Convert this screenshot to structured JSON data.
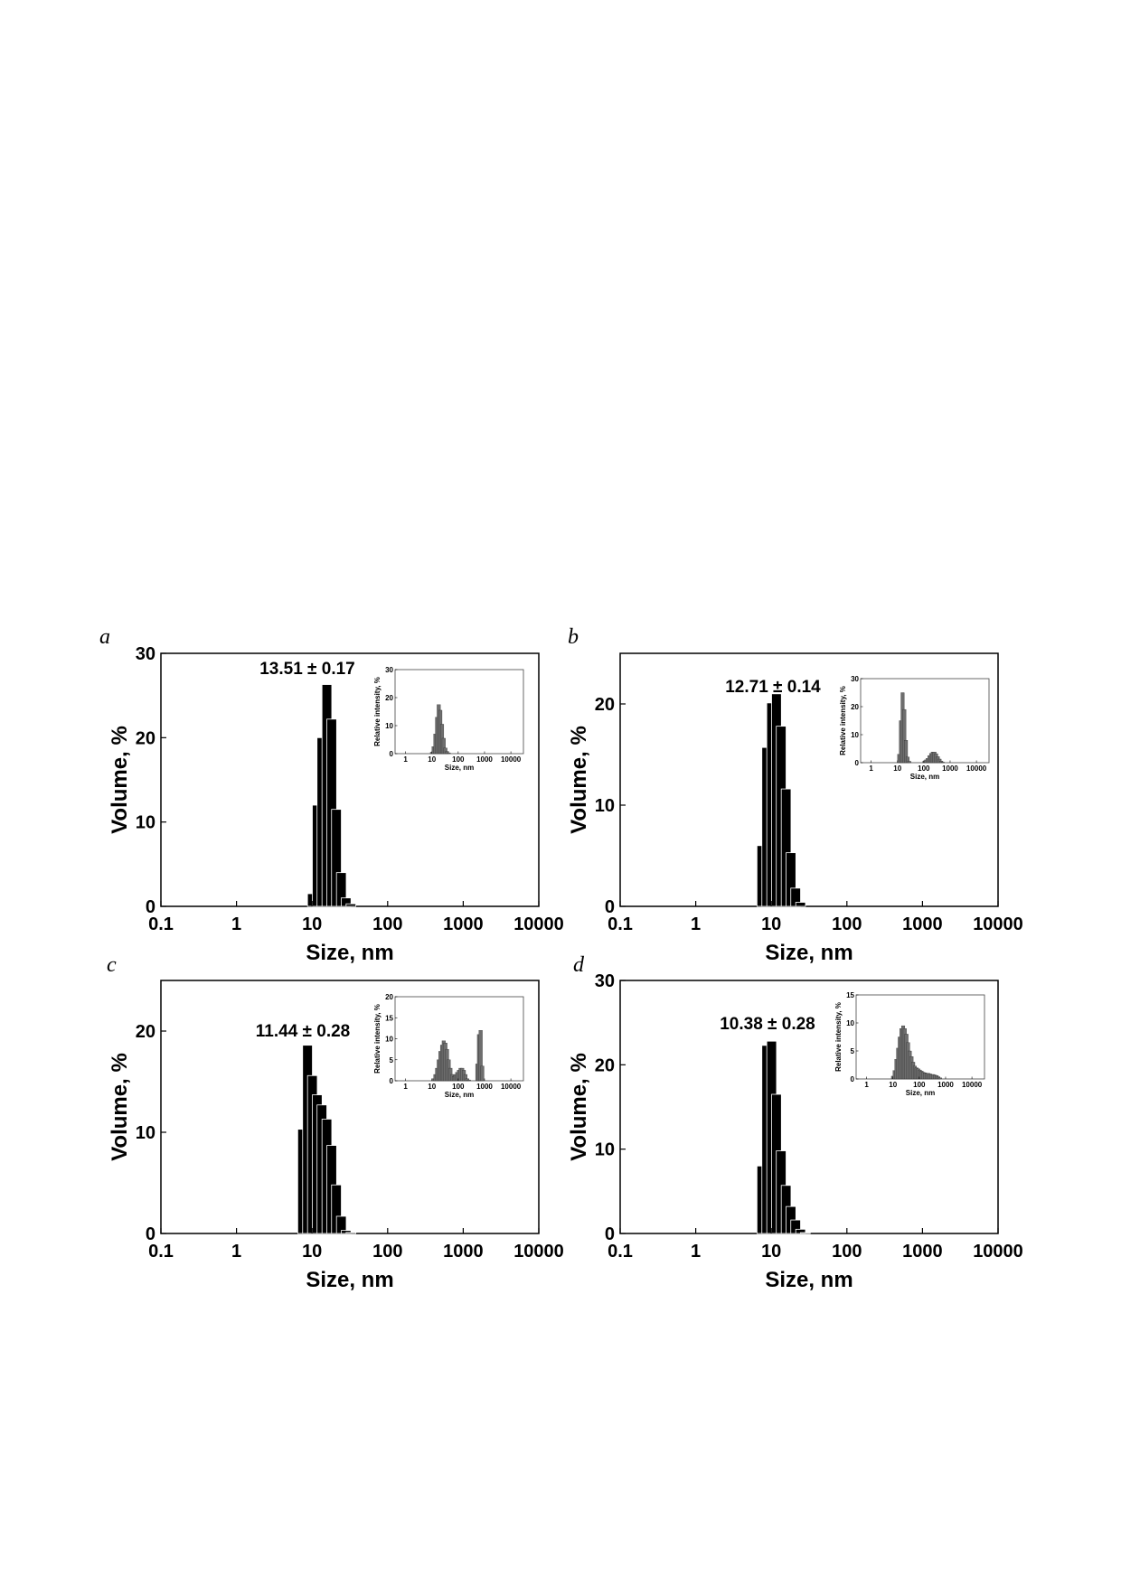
{
  "chart_data": [
    {
      "type": "bar",
      "panel": "a",
      "annotation": "13.51 ± 0.17",
      "xlabel": "Size, nm",
      "ylabel": "Volume, %",
      "xscale": "log",
      "xlim": [
        0.1,
        10000
      ],
      "xticks": [
        "0.1",
        "1",
        "10",
        "100",
        "1000",
        "10000"
      ],
      "ylim": [
        0,
        30
      ],
      "yticks": [
        "0",
        "10",
        "20",
        "30"
      ],
      "grid": false,
      "x": [
        10.1,
        11.7,
        13.5,
        15.7,
        18.2,
        21.0,
        24.4,
        28.2,
        32.7
      ],
      "values": [
        1.5,
        12.0,
        20.0,
        26.3,
        22.2,
        11.5,
        4.0,
        1.0,
        0.3
      ],
      "inset": {
        "type": "bar",
        "xlabel": "Size, nm",
        "ylabel": "Relative intensity, %",
        "xscale": "log",
        "xlim": [
          0.4,
          30000
        ],
        "xticks": [
          "1",
          "10",
          "100",
          "1000",
          "10000"
        ],
        "ylim": [
          0,
          30
        ],
        "yticks": [
          "0",
          "10",
          "20",
          "30"
        ],
        "x": [
          10.1,
          11.7,
          13.5,
          15.7,
          18.2,
          21.0,
          24.4,
          28.2,
          32.7,
          37.8,
          43.8
        ],
        "values": [
          0.5,
          2.5,
          7.0,
          13.0,
          17.5,
          15.5,
          10.5,
          5.5,
          2.0,
          0.8,
          0.3
        ]
      }
    },
    {
      "type": "bar",
      "panel": "b",
      "annotation": "12.71 ± 0.14",
      "xlabel": "Size, nm",
      "ylabel": "Volume, %",
      "xscale": "log",
      "xlim": [
        0.1,
        10000
      ],
      "xticks": [
        "0.1",
        "1",
        "10",
        "100",
        "1000",
        "10000"
      ],
      "ylim": [
        0,
        25
      ],
      "yticks": [
        "0",
        "10",
        "20"
      ],
      "grid": false,
      "x": [
        7.5,
        8.7,
        10.1,
        11.7,
        13.5,
        15.7,
        18.2,
        21.0,
        24.4
      ],
      "values": [
        6.0,
        15.7,
        20.1,
        21.0,
        17.8,
        11.6,
        5.3,
        1.8,
        0.4
      ],
      "inset": {
        "type": "bar",
        "xlabel": "Size, nm",
        "ylabel": "Relative intensity, %",
        "xscale": "log",
        "xlim": [
          0.4,
          30000
        ],
        "xticks": [
          "1",
          "10",
          "100",
          "1000",
          "10000"
        ],
        "ylim": [
          0,
          30
        ],
        "yticks": [
          "0",
          "10",
          "20",
          "30"
        ],
        "x": [
          11.7,
          13.5,
          15.7,
          18.2,
          21.0,
          24.4,
          28.2,
          105,
          122,
          141,
          164,
          190,
          220,
          255,
          295,
          342,
          396,
          459,
          531
        ],
        "values": [
          3.0,
          15.0,
          25.0,
          19.0,
          8.0,
          2.0,
          0.5,
          0.5,
          1.0,
          1.5,
          2.5,
          3.3,
          3.8,
          3.8,
          3.2,
          2.2,
          1.3,
          0.6,
          0.2
        ]
      }
    },
    {
      "type": "bar",
      "panel": "c",
      "annotation": "11.44 ± 0.28",
      "xlabel": "Size, nm",
      "ylabel": "Volume, %",
      "xscale": "log",
      "xlim": [
        0.1,
        10000
      ],
      "xticks": [
        "0.1",
        "1",
        "10",
        "100",
        "1000",
        "10000"
      ],
      "ylim": [
        0,
        25
      ],
      "yticks": [
        "0",
        "10",
        "20"
      ],
      "grid": false,
      "x": [
        7.5,
        8.7,
        10.1,
        11.7,
        13.5,
        15.7,
        18.2,
        21.0,
        24.4,
        28.2,
        32.7
      ],
      "values": [
        10.3,
        18.6,
        15.6,
        13.7,
        12.7,
        11.3,
        8.7,
        4.8,
        1.7,
        0.3,
        0.1
      ],
      "inset": {
        "type": "bar",
        "xlabel": "Size, nm",
        "ylabel": "Relative intensity, %",
        "xscale": "log",
        "xlim": [
          0.4,
          30000
        ],
        "xticks": [
          "1",
          "10",
          "100",
          "1000",
          "10000"
        ],
        "ylim": [
          0,
          20
        ],
        "yticks": [
          "0",
          "5",
          "10",
          "15",
          "20"
        ],
        "x": [
          11.7,
          13.5,
          15.7,
          18.2,
          21.0,
          24.4,
          28.2,
          32.7,
          37.8,
          43.8,
          50.7,
          58.8,
          68.1,
          78.8,
          91.3,
          105.7,
          122.4,
          141.8,
          164.2,
          190.1,
          220.2,
          255.0,
          531.2,
          615.1,
          712.4,
          825.0
        ],
        "values": [
          0.5,
          1.5,
          3.0,
          5.0,
          7.0,
          8.5,
          9.5,
          9.0,
          7.5,
          5.0,
          3.0,
          1.5,
          1.0,
          1.5,
          2.0,
          2.5,
          3.0,
          3.0,
          2.5,
          1.5,
          0.5,
          0.2,
          4.0,
          11.0,
          12.0,
          3.5
        ]
      }
    },
    {
      "type": "bar",
      "panel": "d",
      "annotation": "10.38 ± 0.28",
      "xlabel": "Size, nm",
      "ylabel": "Volume, %",
      "xscale": "log",
      "xlim": [
        0.1,
        10000
      ],
      "xticks": [
        "0.1",
        "1",
        "10",
        "100",
        "1000",
        "10000"
      ],
      "ylim": [
        0,
        30
      ],
      "yticks": [
        "0",
        "10",
        "20",
        "30"
      ],
      "grid": false,
      "x": [
        7.5,
        8.7,
        10.1,
        11.7,
        13.5,
        15.7,
        18.2,
        21.0,
        24.4,
        28.2
      ],
      "values": [
        8.0,
        22.3,
        22.8,
        16.5,
        9.8,
        5.7,
        3.2,
        1.6,
        0.5,
        0.1
      ],
      "inset": {
        "type": "bar",
        "xlabel": "Size, nm",
        "ylabel": "Relative intensity, %",
        "xscale": "log",
        "xlim": [
          0.4,
          30000
        ],
        "xticks": [
          "1",
          "10",
          "100",
          "1000",
          "10000"
        ],
        "ylim": [
          0,
          15
        ],
        "yticks": [
          "0",
          "5",
          "10",
          "15"
        ],
        "x": [
          10.1,
          11.7,
          13.5,
          15.7,
          18.2,
          21.0,
          24.4,
          28.2,
          32.7,
          37.8,
          43.8,
          50.7,
          58.8,
          68.1,
          78.8,
          91.3,
          105.7,
          122.4,
          141.8,
          164.2,
          190.1,
          220.2,
          255.0,
          295.3,
          342.0,
          396.1,
          458.7,
          531.2,
          615.1
        ],
        "values": [
          0.5,
          1.5,
          3.5,
          5.5,
          7.5,
          9.0,
          9.5,
          9.0,
          8.0,
          6.5,
          5.0,
          4.0,
          3.0,
          2.3,
          2.0,
          1.8,
          1.6,
          1.4,
          1.2,
          1.1,
          1.0,
          1.0,
          0.9,
          0.8,
          0.8,
          0.7,
          0.6,
          0.4,
          0.2
        ]
      }
    }
  ]
}
